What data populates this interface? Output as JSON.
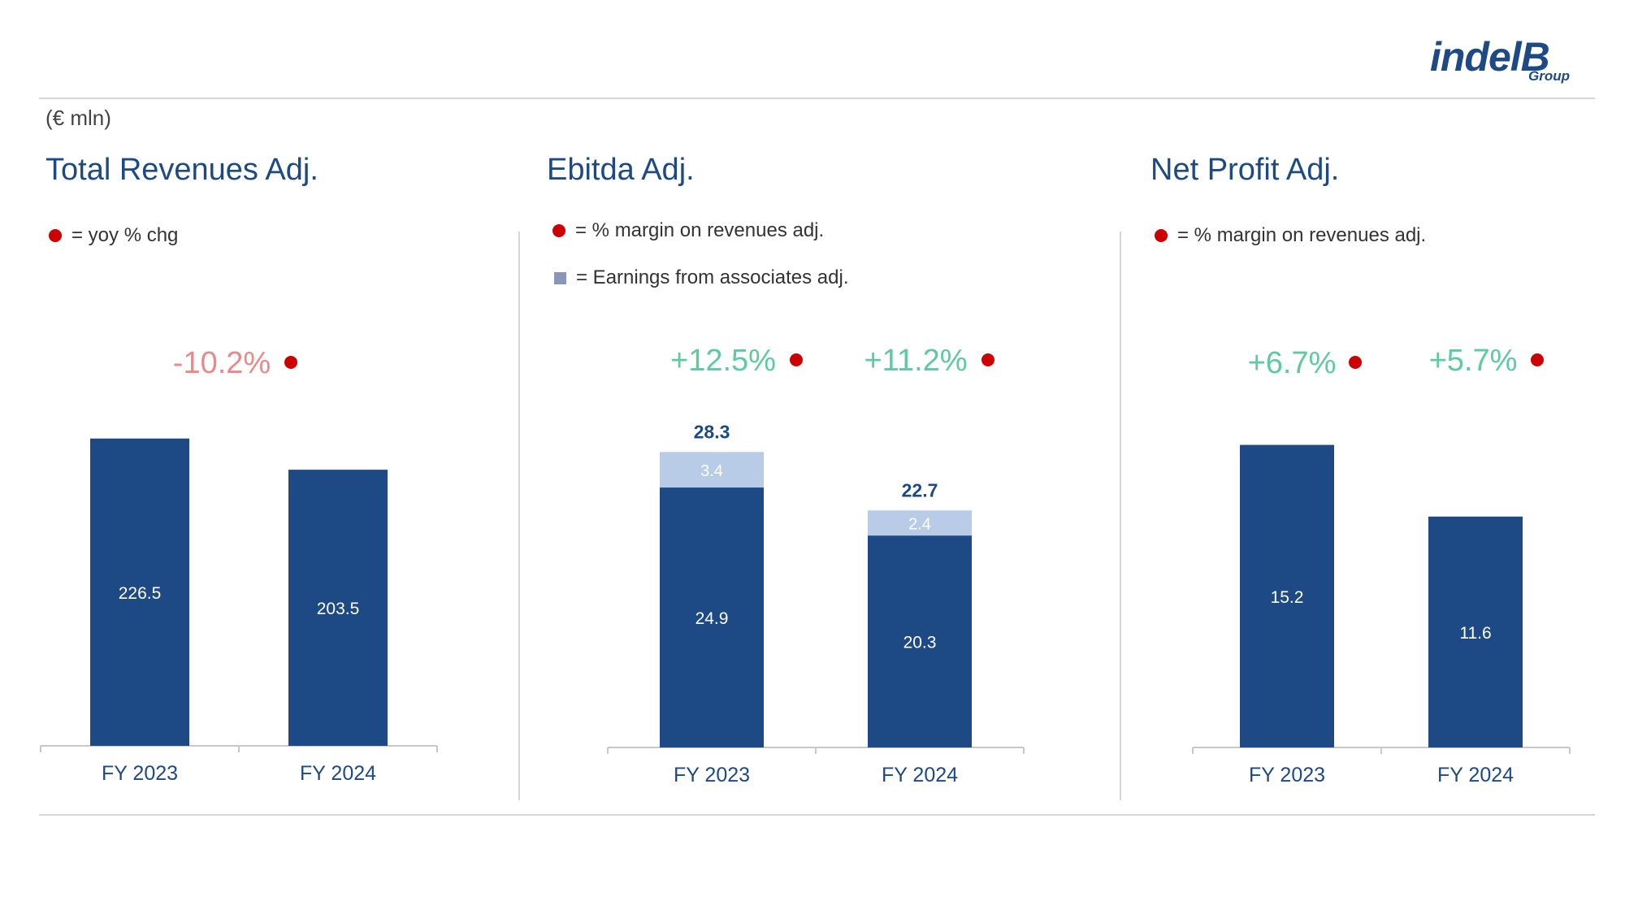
{
  "unit_label": "(€ mln)",
  "logo": {
    "word": "indelB",
    "sub": "Group"
  },
  "colors": {
    "bar": "#1d4a85",
    "associates": "#b8cce8",
    "negative": "#e88a8a",
    "positive": "#5dcaa0",
    "marker": "#cc0000",
    "axis": "#c8c8c8"
  },
  "panels": [
    {
      "title": "Total Revenues Adj.",
      "legend": [
        {
          "icon": "red-dot",
          "text": "= yoy % chg"
        }
      ]
    },
    {
      "title": "Ebitda Adj.",
      "legend": [
        {
          "icon": "red-dot",
          "text": "= % margin on revenues adj."
        },
        {
          "icon": "grey-square",
          "text": "= Earnings from associates adj."
        }
      ]
    },
    {
      "title": "Net Profit Adj.",
      "legend": [
        {
          "icon": "red-dot",
          "text": "= % margin on revenues adj."
        }
      ]
    }
  ],
  "chart_data": [
    {
      "type": "bar",
      "title": "Total Revenues Adj.",
      "categories": [
        "FY 2023",
        "FY 2024"
      ],
      "values": [
        226.5,
        203.5
      ],
      "ylim": [
        0,
        300
      ],
      "indicators": [
        {
          "label": "-10.2%",
          "sign": "negative",
          "position": "between"
        }
      ]
    },
    {
      "type": "bar",
      "stacked": true,
      "title": "Ebitda Adj.",
      "categories": [
        "FY 2023",
        "FY 2024"
      ],
      "series": [
        {
          "values": [
            24.9,
            20.3
          ]
        },
        {
          "name": "Earnings from associates adj.",
          "values": [
            3.4,
            2.4
          ]
        }
      ],
      "totals": [
        "28.3",
        "22.7"
      ],
      "ylim": [
        0,
        35
      ],
      "indicators": [
        {
          "label": "+12.5%",
          "sign": "positive",
          "category": "FY 2023"
        },
        {
          "label": "+11.2%",
          "sign": "positive",
          "category": "FY 2024"
        }
      ]
    },
    {
      "type": "bar",
      "title": "Net Profit Adj.",
      "categories": [
        "FY 2023",
        "FY 2024"
      ],
      "values": [
        15.2,
        11.6
      ],
      "ylim": [
        0,
        20
      ],
      "indicators": [
        {
          "label": "+6.7%",
          "sign": "positive",
          "category": "FY 2023"
        },
        {
          "label": "+5.7%",
          "sign": "positive",
          "category": "FY 2024"
        }
      ]
    }
  ]
}
